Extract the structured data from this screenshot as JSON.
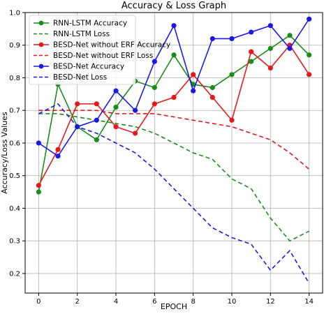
{
  "chart_data": {
    "type": "line",
    "title": "Accuracy & Loss Graph",
    "xlabel": "EPOCH",
    "ylabel": "Accuracy/Loss Values",
    "x": [
      0,
      1,
      2,
      3,
      4,
      5,
      6,
      7,
      8,
      9,
      10,
      11,
      12,
      13,
      14
    ],
    "xlim": [
      -0.7,
      14.7
    ],
    "ylim": [
      0.14,
      1.0
    ],
    "xticks": [
      0,
      2,
      4,
      6,
      8,
      10,
      12,
      14
    ],
    "yticks": [
      0.2,
      0.3,
      0.4,
      0.5,
      0.6,
      0.7,
      0.8,
      0.9,
      1.0
    ],
    "grid": true,
    "legend_position": "top-left",
    "series": [
      {
        "name": "RNN-LSTM Accuracy",
        "color": "#1a8c1a",
        "style": "solid",
        "marker": true,
        "values": [
          0.45,
          0.78,
          0.65,
          0.61,
          0.71,
          0.79,
          0.77,
          0.87,
          0.78,
          0.77,
          0.81,
          0.85,
          0.89,
          0.93,
          0.87
        ]
      },
      {
        "name": "RNN-LSTM Loss",
        "color": "#1a8c1a",
        "style": "dashed",
        "marker": false,
        "values": [
          0.69,
          0.69,
          0.68,
          0.67,
          0.66,
          0.65,
          0.63,
          0.6,
          0.57,
          0.55,
          0.49,
          0.46,
          0.37,
          0.3,
          0.33
        ]
      },
      {
        "name": "BESD-Net without ERF Accuracy",
        "color": "#e41a1a",
        "style": "solid",
        "marker": true,
        "values": [
          0.47,
          0.58,
          0.72,
          0.72,
          0.65,
          0.63,
          0.72,
          0.74,
          0.81,
          0.74,
          0.67,
          0.88,
          0.83,
          0.9,
          0.81
        ]
      },
      {
        "name": "BESD-Net without ERF Loss",
        "color": "#e41a1a",
        "style": "dashed",
        "marker": false,
        "values": [
          0.7,
          0.7,
          0.7,
          0.7,
          0.69,
          0.69,
          0.69,
          0.68,
          0.67,
          0.66,
          0.65,
          0.63,
          0.61,
          0.57,
          0.52
        ]
      },
      {
        "name": "BESD-Net Accuracy",
        "color": "#1a1ae6",
        "style": "solid",
        "marker": true,
        "values": [
          0.6,
          0.56,
          0.65,
          0.67,
          0.76,
          0.7,
          0.85,
          0.96,
          0.76,
          0.92,
          0.92,
          0.94,
          0.96,
          0.89,
          0.98
        ]
      },
      {
        "name": "BESD-Net Loss",
        "color": "#1a1ae6",
        "style": "dashed",
        "marker": false,
        "values": [
          0.69,
          0.72,
          0.65,
          0.63,
          0.6,
          0.57,
          0.52,
          0.46,
          0.4,
          0.34,
          0.31,
          0.29,
          0.21,
          0.27,
          0.17
        ]
      }
    ]
  }
}
